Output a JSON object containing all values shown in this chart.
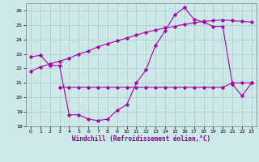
{
  "bg_color": "#cce8e8",
  "grid_color": "#aacccc",
  "line_color": "#aa00aa",
  "xlabel": "Windchill (Refroidissement éolien,°C)",
  "ylim": [
    18,
    26.5
  ],
  "xlim": [
    -0.5,
    23.5
  ],
  "yticks": [
    18,
    19,
    20,
    21,
    22,
    23,
    24,
    25,
    26
  ],
  "xticks": [
    0,
    1,
    2,
    3,
    4,
    5,
    6,
    7,
    8,
    9,
    10,
    11,
    12,
    13,
    14,
    15,
    16,
    17,
    18,
    19,
    20,
    21,
    22,
    23
  ],
  "line1_x": [
    0,
    1,
    2,
    3,
    4,
    5,
    6,
    7,
    8,
    9,
    10,
    11,
    12,
    13,
    14,
    15,
    16,
    17,
    18,
    19,
    20,
    21,
    22,
    23
  ],
  "line1_y": [
    22.8,
    22.9,
    22.2,
    22.2,
    18.8,
    18.8,
    18.5,
    18.4,
    18.5,
    19.1,
    19.5,
    21.0,
    21.9,
    23.6,
    24.6,
    25.7,
    26.2,
    25.4,
    25.2,
    24.9,
    24.9,
    20.9,
    20.1,
    21.0
  ],
  "line2_x": [
    3,
    4,
    5,
    6,
    7,
    8,
    9,
    10,
    11,
    12,
    13,
    14,
    15,
    16,
    17,
    18,
    19,
    20,
    21,
    22,
    23
  ],
  "line2_y": [
    20.7,
    20.7,
    20.7,
    20.7,
    20.7,
    20.7,
    20.7,
    20.7,
    20.7,
    20.7,
    20.7,
    20.7,
    20.7,
    20.7,
    20.7,
    20.7,
    20.7,
    20.7,
    21.0,
    21.0,
    21.0
  ],
  "line3_x": [
    0,
    1,
    2,
    3,
    4,
    5,
    6,
    7,
    8,
    9,
    10,
    11,
    12,
    13,
    14,
    15,
    16,
    17,
    18,
    19,
    20,
    21,
    22,
    23
  ],
  "line3_y": [
    21.8,
    22.1,
    22.3,
    22.5,
    22.7,
    23.0,
    23.2,
    23.5,
    23.7,
    23.9,
    24.1,
    24.3,
    24.5,
    24.65,
    24.8,
    24.9,
    25.05,
    25.15,
    25.25,
    25.3,
    25.35,
    25.3,
    25.25,
    25.2
  ]
}
